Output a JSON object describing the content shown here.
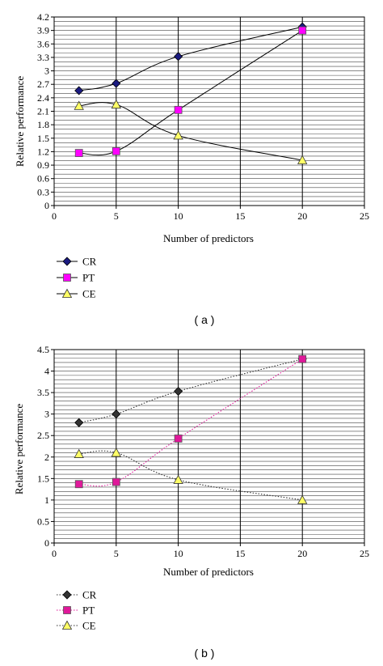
{
  "chart_data": [
    {
      "type": "line",
      "caption": "( a )",
      "xlabel": "Number of predictors",
      "ylabel": "Relative  performance",
      "xlim": [
        0,
        25
      ],
      "ylim": [
        0,
        4.2
      ],
      "x_ticks": [
        "0",
        "5",
        "10",
        "15",
        "20",
        "25"
      ],
      "y_ticks": [
        "0",
        "0.3",
        "0.6",
        "0.9",
        "1.2",
        "1.5",
        "1.8",
        "2.1",
        "2.4",
        "2.7",
        "3",
        "3.3",
        "3.6",
        "3.9",
        "4.2"
      ],
      "grid": true,
      "legend": "bottom-left",
      "series": [
        {
          "name": "CR",
          "x": [
            2,
            5,
            10,
            20
          ],
          "values": [
            2.56,
            2.72,
            3.32,
            3.98
          ],
          "color": "#1a1a80",
          "marker": "diamond",
          "line": "solid"
        },
        {
          "name": "PT",
          "x": [
            2,
            5,
            10,
            20
          ],
          "values": [
            1.17,
            1.21,
            2.13,
            3.9
          ],
          "color": "#ff00ff",
          "marker": "square",
          "line": "solid"
        },
        {
          "name": "CE",
          "x": [
            2,
            5,
            10,
            20
          ],
          "values": [
            2.22,
            2.25,
            1.56,
            1.01
          ],
          "color": "#ffff66",
          "marker": "triangle",
          "line": "solid"
        }
      ]
    },
    {
      "type": "line",
      "caption": "( b )",
      "xlabel": "Number of predictors",
      "ylabel": "Relative performance",
      "xlim": [
        0,
        25
      ],
      "ylim": [
        0,
        4.5
      ],
      "x_ticks": [
        "0",
        "5",
        "10",
        "15",
        "20",
        "25"
      ],
      "y_ticks": [
        "0",
        "0.5",
        "1",
        "1.5",
        "2",
        "2.5",
        "3",
        "3.5",
        "4",
        "4.5"
      ],
      "grid": true,
      "legend": "bottom-left",
      "series": [
        {
          "name": "CR",
          "x": [
            2,
            5,
            10,
            20
          ],
          "values": [
            2.8,
            3.0,
            3.53,
            4.28
          ],
          "color": "#333333",
          "marker": "diamond",
          "line": "dotted"
        },
        {
          "name": "PT",
          "x": [
            2,
            5,
            10,
            20
          ],
          "values": [
            1.37,
            1.42,
            2.43,
            4.28
          ],
          "color": "#e0189a",
          "marker": "square",
          "line": "dotted"
        },
        {
          "name": "CE",
          "x": [
            2,
            5,
            10,
            20
          ],
          "values": [
            2.07,
            2.1,
            1.47,
            1.0
          ],
          "color": "#ffff66",
          "marker": "triangle",
          "line": "dotted"
        }
      ]
    }
  ]
}
